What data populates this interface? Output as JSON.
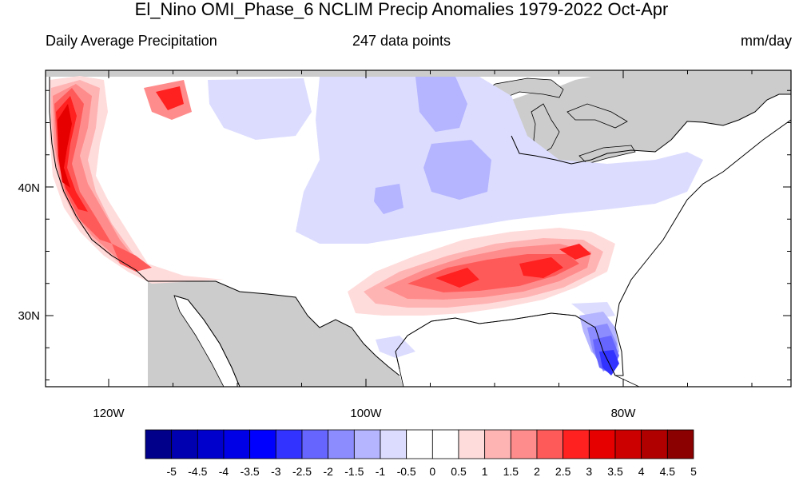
{
  "title": "El_Nino OMI_Phase_6 NCLIM Precip Anomalies 1979-2022 Oct-Apr",
  "subtitle_left": "Daily Average Precipitation",
  "subtitle_center": "247 data points",
  "subtitle_right": "mm/day",
  "lat_labels": [
    "40N",
    "30N"
  ],
  "lon_labels": [
    "120W",
    "100W",
    "80W"
  ],
  "colorbar": {
    "labels": [
      "-5",
      "-4.5",
      "-4",
      "-3.5",
      "-3",
      "-2.5",
      "-2",
      "-1.5",
      "-1",
      "-0.5",
      "0",
      "0.5",
      "1",
      "1.5",
      "2",
      "2.5",
      "3",
      "3.5",
      "4",
      "4.5",
      "5"
    ],
    "colors": [
      "#00008b",
      "#0000b0",
      "#0000cd",
      "#0000e6",
      "#0000ff",
      "#3333ff",
      "#6666ff",
      "#8c8cff",
      "#b4b4ff",
      "#dcdcff",
      "#ffffff",
      "#ffffff",
      "#ffdcdc",
      "#ffb4b4",
      "#ff8c8c",
      "#ff5a5a",
      "#ff2020",
      "#e60000",
      "#cd0000",
      "#b00000",
      "#8b0000"
    ]
  },
  "map": {
    "extent_lon": [
      -125,
      -68
    ],
    "extent_lat": [
      24.5,
      49
    ],
    "land_color": "#ffffff",
    "masked_color": "#cccccc"
  }
}
